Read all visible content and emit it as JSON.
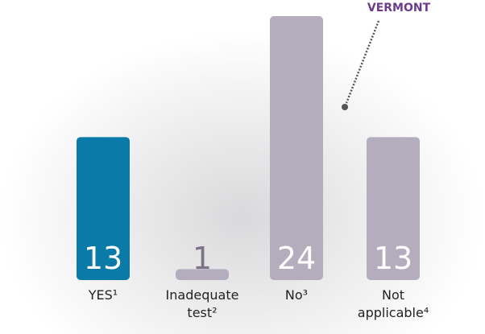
{
  "chart_data": {
    "type": "bar",
    "categories": [
      "YES¹",
      "Inadequate test²",
      "No³",
      "Not applicable⁴"
    ],
    "values": [
      13,
      1,
      24,
      13
    ],
    "colors": [
      "#0a7aa8",
      "#b4adbd",
      "#b4adbd",
      "#b4adbd"
    ],
    "annotation": "VERMONT"
  }
}
